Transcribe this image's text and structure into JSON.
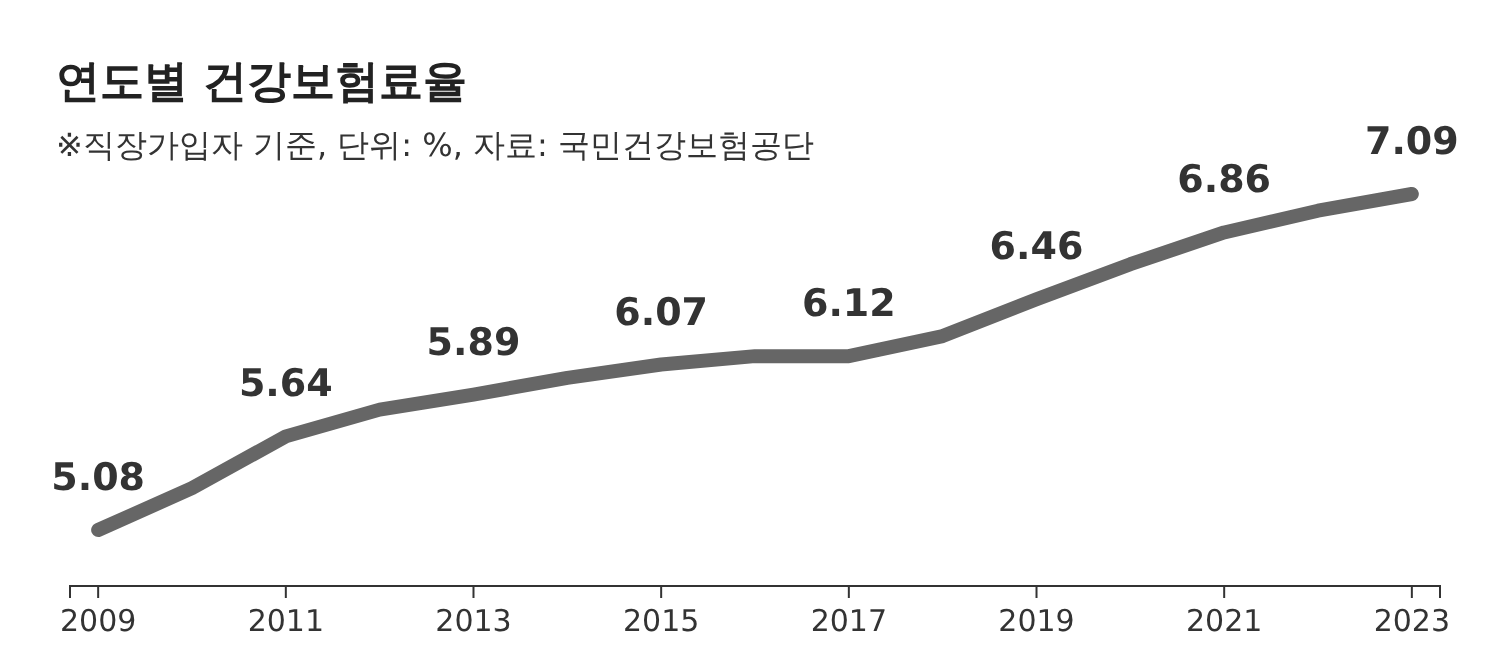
{
  "chart_data": {
    "type": "line",
    "title": "연도별 건강보험료율",
    "subtitle": "※직장가입자 기준, 단위: %, 자료: 국민건강보험공단",
    "x": [
      2009,
      2010,
      2011,
      2012,
      2013,
      2014,
      2015,
      2016,
      2017,
      2018,
      2019,
      2020,
      2021,
      2022,
      2023
    ],
    "series": [
      {
        "color": "#666666",
        "values": [
          5.08,
          5.33,
          5.64,
          5.8,
          5.89,
          5.99,
          6.07,
          6.12,
          6.12,
          6.24,
          6.46,
          6.67,
          6.86,
          6.99,
          7.09
        ],
        "value_labels": [
          "5.08",
          null,
          "5.64",
          null,
          "5.89",
          null,
          "6.07",
          null,
          "6.12",
          null,
          "6.46",
          null,
          "6.86",
          null,
          "7.09"
        ]
      }
    ],
    "xlim": [
      2008.7,
      2023.3
    ],
    "xticks": [
      2009,
      2011,
      2013,
      2015,
      2017,
      2019,
      2021,
      2023
    ],
    "tick_labels": "x",
    "marker": "none",
    "line_style": "solid"
  }
}
